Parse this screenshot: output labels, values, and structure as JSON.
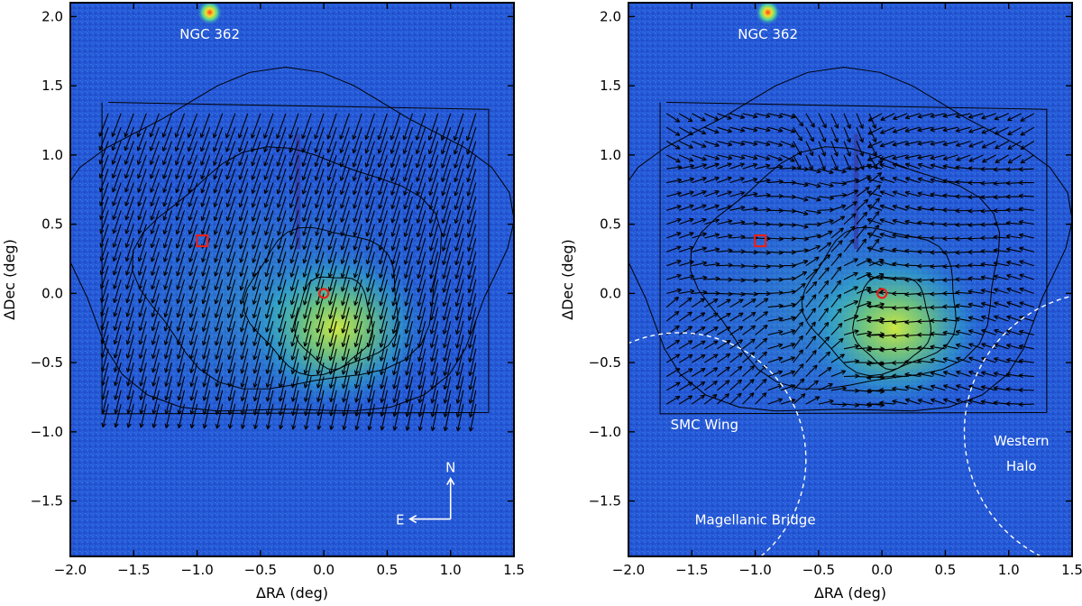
{
  "chart_data": [
    {
      "type": "vector-field",
      "panel": "left",
      "xlabel": "ΔRA (deg)",
      "ylabel": "ΔDec (deg)",
      "xlim": [
        2.0,
        -1.5
      ],
      "ylim": [
        -1.9,
        2.1
      ],
      "xticks": [
        "−2.0",
        "−1.5",
        "−1.0",
        "−0.5",
        "0.0",
        "0.5",
        "1.0",
        "1.5"
      ],
      "yticks": [
        "−1.5",
        "−1.0",
        "−0.5",
        "0.0",
        "0.5",
        "1.0",
        "1.5",
        "2.0"
      ],
      "background": "stellar density map",
      "annotations": [
        {
          "text": "NGC 362",
          "x": 0.9,
          "y": 1.84
        }
      ],
      "cluster_marker": {
        "x": 0.9,
        "y": 2.03
      },
      "markers": [
        {
          "shape": "circle",
          "x": 0.0,
          "y": 0.0,
          "color": "#e8201a"
        },
        {
          "shape": "square",
          "x": 0.96,
          "y": 0.38,
          "color": "#e8201a"
        }
      ],
      "field_pattern": "uniform flow toward south-west with slight rotation",
      "compass": {
        "north": "N",
        "east": "E"
      }
    },
    {
      "type": "vector-field",
      "panel": "right",
      "xlabel": "ΔRA (deg)",
      "ylabel": "ΔDec (deg)",
      "xlim": [
        2.0,
        -1.5
      ],
      "ylim": [
        -1.9,
        2.1
      ],
      "xticks": [
        "−2.0",
        "−1.5",
        "−1.0",
        "−0.5",
        "0.0",
        "0.5",
        "1.0",
        "1.5"
      ],
      "yticks": [
        "−1.5",
        "−1.0",
        "−0.5",
        "0.0",
        "0.5",
        "1.0",
        "1.5",
        "2.0"
      ],
      "background": "stellar density map",
      "annotations": [
        {
          "text": "NGC 362",
          "x": 0.9,
          "y": 1.84
        },
        {
          "text": "SMC Wing",
          "x": 1.4,
          "y": -0.98
        },
        {
          "text": "Western",
          "x": -1.1,
          "y": -1.1
        },
        {
          "text": "Halo",
          "x": -1.1,
          "y": -1.28
        },
        {
          "text": "Magellanic Bridge",
          "x": 1.0,
          "y": -1.67
        }
      ],
      "cluster_marker": {
        "x": 0.9,
        "y": 2.03
      },
      "markers": [
        {
          "shape": "circle",
          "x": 0.0,
          "y": 0.0,
          "color": "#e8201a"
        },
        {
          "shape": "square",
          "x": 0.96,
          "y": 0.38,
          "color": "#e8201a"
        }
      ],
      "field_pattern": "residual motions radiating toward east and west",
      "region_boundaries": [
        {
          "name": "SMC Wing / Magellanic Bridge",
          "style": "dashed white circle",
          "center": [
            1.6,
            -1.2
          ],
          "radius": 1.0
        },
        {
          "name": "Western Halo",
          "style": "dashed white circle",
          "center": [
            -1.75,
            -1.0
          ],
          "radius": 1.1
        }
      ]
    }
  ]
}
